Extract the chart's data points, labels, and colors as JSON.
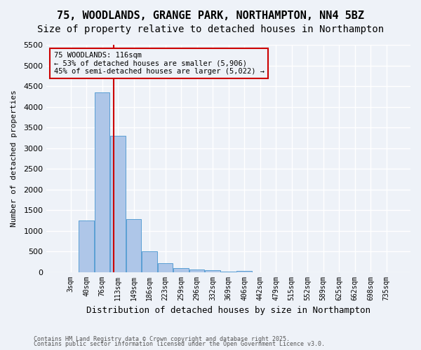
{
  "title1": "75, WOODLANDS, GRANGE PARK, NORTHAMPTON, NN4 5BZ",
  "title2": "Size of property relative to detached houses in Northampton",
  "xlabel": "Distribution of detached houses by size in Northampton",
  "ylabel": "Number of detached properties",
  "bins": [
    "3sqm",
    "40sqm",
    "76sqm",
    "113sqm",
    "149sqm",
    "186sqm",
    "223sqm",
    "259sqm",
    "296sqm",
    "332sqm",
    "369sqm",
    "406sqm",
    "442sqm",
    "479sqm",
    "515sqm",
    "552sqm",
    "589sqm",
    "625sqm",
    "662sqm",
    "698sqm",
    "735sqm"
  ],
  "values": [
    0,
    1250,
    4350,
    3300,
    1280,
    500,
    220,
    90,
    55,
    40,
    15,
    30,
    0,
    0,
    0,
    0,
    0,
    0,
    0,
    0,
    0
  ],
  "bar_color": "#aec6e8",
  "bar_edge_color": "#5a9fd4",
  "red_line_x": 2.75,
  "annotation_text": "75 WOODLANDS: 116sqm\n← 53% of detached houses are smaller (5,906)\n45% of semi-detached houses are larger (5,022) →",
  "annotation_color": "#cc0000",
  "ylim": [
    0,
    5500
  ],
  "yticks": [
    0,
    500,
    1000,
    1500,
    2000,
    2500,
    3000,
    3500,
    4000,
    4500,
    5000,
    5500
  ],
  "footnote1": "Contains HM Land Registry data © Crown copyright and database right 2025.",
  "footnote2": "Contains public sector information licensed under the Open Government Licence v3.0.",
  "bg_color": "#eef2f8",
  "grid_color": "#ffffff",
  "title_fontsize": 11,
  "subtitle_fontsize": 10,
  "bar_width": 0.95
}
